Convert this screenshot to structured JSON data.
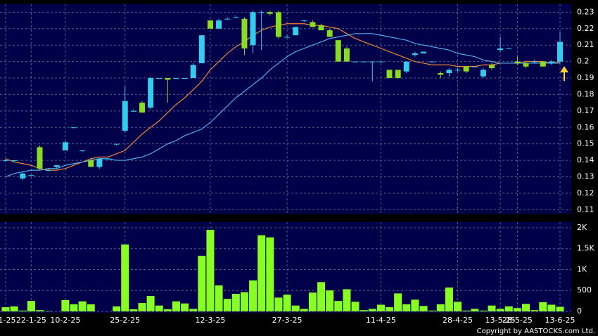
{
  "chart_data": [
    {
      "type": "candlestick",
      "categories": [
        "-1-25",
        null,
        null,
        "22-1-25",
        null,
        null,
        null,
        "10-2-25",
        null,
        null,
        null,
        null,
        null,
        null,
        "25-2-25",
        null,
        null,
        null,
        null,
        null,
        null,
        null,
        null,
        null,
        "12-3-25",
        null,
        null,
        null,
        null,
        null,
        null,
        null,
        null,
        "27-3-25",
        null,
        null,
        null,
        null,
        null,
        null,
        null,
        null,
        null,
        null,
        "11-4-25",
        null,
        null,
        null,
        null,
        null,
        null,
        null,
        null,
        "28-4-25",
        null,
        null,
        null,
        null,
        "13-5-25",
        null,
        "28-5-25",
        null,
        null,
        null,
        null,
        "13-6-25"
      ],
      "open": [
        0.14,
        0.14,
        0.129,
        0.131,
        0.148,
        0.134,
        0.136,
        0.146,
        0.16,
        0.146,
        0.14,
        0.136,
        0.141,
        0.15,
        0.158,
        0.17,
        0.175,
        0.172,
        0.19,
        0.19,
        0.19,
        0.19,
        0.19,
        0.199,
        0.225,
        0.22,
        0.226,
        0.227,
        0.226,
        0.21,
        0.23,
        0.23,
        0.23,
        0.215,
        0.216,
        0.225,
        0.224,
        0.222,
        0.219,
        0.213,
        0.208,
        0.2,
        0.2,
        0.2,
        0.2,
        0.195,
        0.195,
        0.194,
        0.204,
        0.205,
        0.2,
        0.193,
        0.193,
        0.195,
        0.197,
        0.197,
        0.191,
        0.198,
        0.207,
        0.208,
        0.2,
        0.199,
        0.2,
        0.2,
        0.199,
        0.2
      ],
      "high": [
        0.141,
        0.14,
        0.133,
        0.131,
        0.149,
        0.135,
        0.137,
        0.152,
        0.16,
        0.146,
        0.141,
        0.141,
        0.141,
        0.15,
        0.185,
        0.171,
        0.176,
        0.191,
        0.19,
        0.19,
        0.19,
        0.19,
        0.199,
        0.216,
        0.225,
        0.226,
        0.227,
        0.228,
        0.227,
        0.231,
        0.231,
        0.231,
        0.231,
        0.216,
        0.221,
        0.225,
        0.225,
        0.223,
        0.22,
        0.213,
        0.209,
        0.2,
        0.2,
        0.2,
        0.2,
        0.195,
        0.195,
        0.2,
        0.206,
        0.206,
        0.2,
        0.194,
        0.196,
        0.196,
        0.197,
        0.197,
        0.196,
        0.199,
        0.215,
        0.208,
        0.203,
        0.2,
        0.201,
        0.2,
        0.201,
        0.218
      ],
      "low": [
        0.139,
        0.139,
        0.128,
        0.131,
        0.134,
        0.134,
        0.135,
        0.146,
        0.16,
        0.145,
        0.136,
        0.135,
        0.141,
        0.149,
        0.157,
        0.17,
        0.169,
        0.171,
        0.19,
        0.175,
        0.19,
        0.19,
        0.19,
        0.199,
        0.22,
        0.22,
        0.226,
        0.227,
        0.204,
        0.205,
        0.207,
        0.228,
        0.214,
        0.215,
        0.216,
        0.224,
        0.221,
        0.219,
        0.215,
        0.2,
        0.2,
        0.2,
        0.2,
        0.188,
        0.2,
        0.19,
        0.19,
        0.193,
        0.203,
        0.205,
        0.2,
        0.19,
        0.191,
        0.194,
        0.193,
        0.197,
        0.19,
        0.195,
        0.206,
        0.208,
        0.198,
        0.196,
        0.199,
        0.197,
        0.198,
        0.199
      ],
      "close": [
        0.14,
        0.14,
        0.132,
        0.131,
        0.135,
        0.134,
        0.137,
        0.151,
        0.16,
        0.146,
        0.136,
        0.141,
        0.141,
        0.15,
        0.176,
        0.17,
        0.169,
        0.19,
        0.19,
        0.189,
        0.19,
        0.19,
        0.198,
        0.216,
        0.22,
        0.225,
        0.226,
        0.227,
        0.208,
        0.23,
        0.23,
        0.229,
        0.215,
        0.215,
        0.221,
        0.225,
        0.221,
        0.219,
        0.215,
        0.2,
        0.2,
        0.2,
        0.2,
        0.2,
        0.2,
        0.19,
        0.19,
        0.2,
        0.205,
        0.206,
        0.2,
        0.192,
        0.195,
        0.195,
        0.194,
        0.197,
        0.195,
        0.196,
        0.208,
        0.208,
        0.199,
        0.197,
        0.2,
        0.197,
        0.2,
        0.212
      ],
      "up_color": "#33ccee",
      "down_color": "#88dd22",
      "lines": [
        {
          "color": "#ee8833",
          "values": [
            0.141,
            0.139,
            0.138,
            0.137,
            0.135,
            0.134,
            0.134,
            0.135,
            0.137,
            0.139,
            0.141,
            0.142,
            0.142,
            0.144,
            0.146,
            0.151,
            0.156,
            0.16,
            0.164,
            0.169,
            0.174,
            0.178,
            0.183,
            0.188,
            0.195,
            0.2,
            0.205,
            0.209,
            0.212,
            0.216,
            0.219,
            0.221,
            0.222,
            0.223,
            0.223,
            0.223,
            0.222,
            0.222,
            0.221,
            0.22,
            0.217,
            0.214,
            0.212,
            0.21,
            0.208,
            0.206,
            0.204,
            0.202,
            0.2,
            0.199,
            0.198,
            0.198,
            0.198,
            0.197,
            0.197,
            0.197,
            0.198,
            0.198,
            0.199,
            0.199,
            0.199,
            0.2,
            0.2,
            0.2,
            0.199,
            0.2
          ]
        },
        {
          "color": "#55aaee",
          "values": [
            0.13,
            0.132,
            0.133,
            0.134,
            0.134,
            0.135,
            0.135,
            0.137,
            0.138,
            0.139,
            0.14,
            0.141,
            0.141,
            0.14,
            0.14,
            0.141,
            0.142,
            0.144,
            0.147,
            0.15,
            0.152,
            0.155,
            0.157,
            0.159,
            0.163,
            0.168,
            0.173,
            0.178,
            0.182,
            0.186,
            0.19,
            0.195,
            0.199,
            0.203,
            0.206,
            0.208,
            0.21,
            0.212,
            0.214,
            0.215,
            0.216,
            0.217,
            0.217,
            0.217,
            0.216,
            0.215,
            0.214,
            0.213,
            0.211,
            0.21,
            0.209,
            0.208,
            0.207,
            0.205,
            0.204,
            0.203,
            0.201,
            0.2,
            0.199,
            0.199,
            0.199,
            0.199,
            0.199,
            0.199,
            0.199,
            0.199
          ]
        }
      ],
      "ylim": [
        0.108,
        0.234
      ],
      "yticks": [
        0.11,
        0.12,
        0.13,
        0.14,
        0.15,
        0.16,
        0.17,
        0.18,
        0.19,
        0.2,
        0.21,
        0.22,
        0.23
      ],
      "grid": true
    },
    {
      "type": "bar",
      "color": "#88ff22",
      "values": [
        100,
        120,
        20,
        250,
        30,
        10,
        0,
        270,
        170,
        240,
        170,
        0,
        0,
        120,
        1600,
        50,
        200,
        370,
        140,
        50,
        240,
        190,
        60,
        1330,
        1950,
        620,
        300,
        420,
        460,
        740,
        1820,
        1770,
        330,
        400,
        140,
        60,
        450,
        700,
        500,
        250,
        530,
        230,
        30,
        60,
        160,
        100,
        430,
        170,
        280,
        130,
        20,
        170,
        570,
        230,
        20,
        60,
        20,
        140,
        60,
        120,
        80,
        180,
        30,
        220,
        160,
        110
      ],
      "ylim": [
        0,
        2100
      ],
      "yticks": [
        0,
        500,
        {
          "value": 1000,
          "label": "1K"
        },
        {
          "value": 1500,
          "label": "1.5K"
        },
        {
          "value": 2000,
          "label": "2K"
        }
      ],
      "grid": true
    }
  ],
  "copyright": "Copyright by AASTOCKS.com Ltd."
}
